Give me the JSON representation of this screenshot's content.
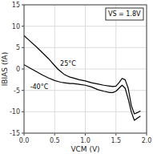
{
  "chart_data": {
    "type": "line",
    "xlabel": "VCM (V)",
    "ylabel": "IBIAS (fA)",
    "annotation": "VS = 1.8V",
    "x": [
      0.0,
      0.1,
      0.2,
      0.3,
      0.4,
      0.5,
      0.55,
      0.6,
      0.65,
      0.7,
      0.75,
      0.8,
      0.9,
      1.0,
      1.1,
      1.2,
      1.3,
      1.4,
      1.45,
      1.5,
      1.55,
      1.6,
      1.65,
      1.7,
      1.75,
      1.8,
      1.85,
      1.9
    ],
    "series": [
      {
        "name": "25°C",
        "color": "#000000",
        "values": [
          7.8,
          6.5,
          5.2,
          3.8,
          2.4,
          0.8,
          0.0,
          -0.6,
          -1.2,
          -1.6,
          -1.9,
          -2.1,
          -2.5,
          -2.8,
          -3.2,
          -3.5,
          -3.8,
          -4.0,
          -4.1,
          -4.0,
          -3.2,
          -2.2,
          -2.5,
          -4.5,
          -8.5,
          -10.5,
          -10.2,
          -9.8
        ]
      },
      {
        "name": "-40°C",
        "color": "#000000",
        "values": [
          1.0,
          0.2,
          -0.6,
          -1.4,
          -2.1,
          -2.7,
          -2.9,
          -3.1,
          -3.2,
          -3.3,
          -3.4,
          -3.4,
          -3.6,
          -3.8,
          -4.2,
          -4.8,
          -5.2,
          -5.5,
          -5.5,
          -5.2,
          -4.5,
          -3.8,
          -4.5,
          -7.0,
          -10.0,
          -12.0,
          -11.5,
          -11.0
        ]
      }
    ],
    "xlim": [
      0.0,
      2.0
    ],
    "ylim": [
      -15,
      15
    ],
    "xticks": [
      {
        "value": 0.0,
        "label": "0.0"
      },
      0.5,
      {
        "value": 1.0,
        "label": "1.0"
      },
      1.5,
      {
        "value": 2.0,
        "label": "2.0"
      }
    ],
    "yticks": [
      -15,
      -10,
      -5,
      0,
      5,
      10,
      15
    ],
    "grid": true
  }
}
